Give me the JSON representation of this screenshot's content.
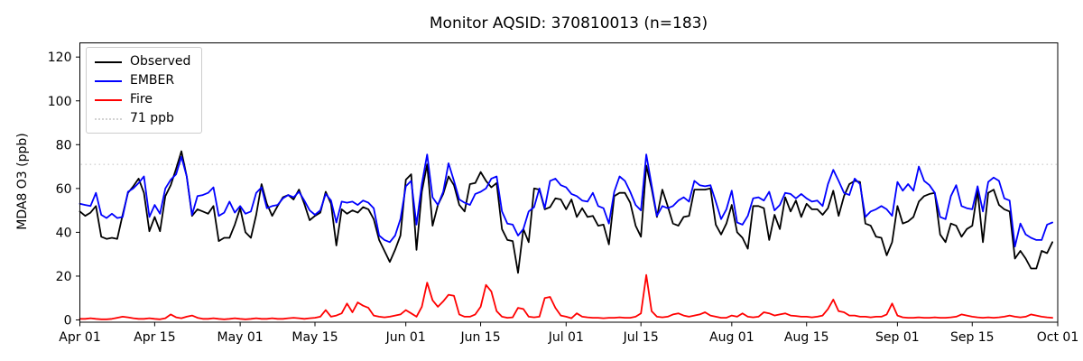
{
  "chart_data": {
    "type": "line",
    "title": "Monitor AQSID: 370810013 (n=183)",
    "xlabel": "",
    "ylabel": "MDA8 O3 (ppb)",
    "n_points": 183,
    "x_unit": "day (Apr 01 = 0)",
    "x_tick_days": [
      0,
      14,
      30,
      44,
      61,
      75,
      91,
      105,
      122,
      136,
      153,
      167,
      183
    ],
    "x_tick_labels": [
      "Apr 01",
      "Apr 15",
      "May 01",
      "May 15",
      "Jun 01",
      "Jun 15",
      "Jul 01",
      "Jul 15",
      "Aug 01",
      "Aug 15",
      "Sep 01",
      "Sep 15",
      "Oct 01"
    ],
    "yticks": [
      0,
      20,
      40,
      60,
      80,
      100,
      120
    ],
    "ylim": [
      -1,
      126.5
    ],
    "grid": false,
    "legend_position": "upper-left",
    "threshold": {
      "value": 71,
      "label": "71 ppb",
      "color": "#d3d3d3",
      "style": "dotted"
    },
    "series": [
      {
        "name": "Observed",
        "color": "#000000",
        "values": [
          49.5,
          47.5,
          49,
          52,
          38,
          37,
          37.5,
          37,
          48,
          58,
          61,
          64.5,
          58,
          40.5,
          47,
          40.5,
          56.5,
          61.5,
          69,
          77,
          65.5,
          47.5,
          50.5,
          49.5,
          48.5,
          52,
          36,
          37.5,
          37.5,
          43.5,
          51,
          40,
          37.5,
          48,
          62,
          53,
          47.5,
          52,
          56,
          57,
          55,
          59.5,
          53,
          45.5,
          47.5,
          49,
          58.5,
          53,
          34,
          50.5,
          48.5,
          50,
          49,
          51.5,
          50.5,
          46,
          36.5,
          31.5,
          26.5,
          32,
          38.5,
          64,
          66.5,
          32,
          58.5,
          71,
          43,
          52.5,
          57.5,
          65.5,
          61.5,
          52.5,
          49.5,
          62,
          62.5,
          67.5,
          63.5,
          60.5,
          62.5,
          41.5,
          36.5,
          36,
          21.5,
          41.5,
          35.5,
          60,
          59.5,
          50.5,
          51.5,
          55.5,
          55,
          50.5,
          55,
          47,
          51,
          47,
          47.5,
          43,
          43.5,
          34.5,
          56.5,
          58,
          58,
          53.5,
          43,
          38,
          70.5,
          60,
          47,
          59.5,
          52,
          44,
          43,
          47,
          47.5,
          59.5,
          59.5,
          59.5,
          60,
          43.5,
          39,
          44,
          52.5,
          40,
          37.5,
          32.5,
          52,
          52,
          51,
          36.5,
          48,
          41.5,
          56,
          49.5,
          54.5,
          47,
          53,
          50.5,
          50.5,
          48,
          51,
          59,
          47.5,
          56.5,
          62,
          63.5,
          63,
          44,
          43,
          38,
          37.5,
          29.5,
          35.5,
          52,
          44,
          45,
          47,
          54,
          56.5,
          57.5,
          58,
          39,
          35.5,
          44,
          43,
          38,
          41.5,
          43,
          59,
          35.5,
          58,
          59.5,
          52.5,
          50.5,
          49.5,
          28,
          31.5,
          28,
          23.5,
          23.5,
          31.5,
          30.5,
          35.5
        ]
      },
      {
        "name": "EMBER",
        "color": "#0000ff",
        "values": [
          53,
          52.5,
          52,
          58,
          48,
          46.5,
          48.5,
          46.5,
          47,
          58.5,
          60,
          62.5,
          65.5,
          47,
          52.5,
          48.5,
          60,
          64,
          66.5,
          74.5,
          65.5,
          48,
          56.5,
          57,
          58,
          60.5,
          47.5,
          49,
          54,
          49,
          52,
          48.5,
          49.5,
          58,
          60.5,
          51,
          52,
          52.5,
          55.5,
          57,
          56,
          58.5,
          54.5,
          50,
          48,
          50,
          57.5,
          54.5,
          44.5,
          54,
          53.5,
          54,
          52.5,
          54.5,
          53.5,
          51,
          38.5,
          36.5,
          35.5,
          38.5,
          46,
          61,
          63.5,
          43.5,
          62,
          75.5,
          56,
          52.5,
          58.5,
          71.5,
          63.5,
          55,
          53.5,
          52.5,
          57.5,
          58.5,
          60,
          64.5,
          65.5,
          49.5,
          44,
          43.5,
          38.5,
          41.5,
          49.5,
          51.5,
          60,
          51,
          63.5,
          64.5,
          61.5,
          60.5,
          57.5,
          56.5,
          54.5,
          54,
          58,
          52,
          51,
          44,
          58.5,
          65.5,
          63.5,
          58.5,
          52.5,
          50,
          75.5,
          61.5,
          47.5,
          52,
          51,
          52,
          54.5,
          56,
          54,
          63.5,
          61.5,
          61,
          61.5,
          54,
          46,
          50.5,
          59,
          44.5,
          43.5,
          47.5,
          55.5,
          56,
          54.5,
          58.5,
          50,
          52.5,
          58,
          57.5,
          55.5,
          57.5,
          55.5,
          54,
          54.5,
          52,
          62,
          68.5,
          63.5,
          58,
          57,
          64.5,
          62,
          47,
          49.5,
          50.5,
          52,
          50.5,
          47.5,
          63,
          59,
          62,
          59,
          70,
          63.5,
          61.5,
          58,
          47,
          46,
          56.5,
          61.5,
          52,
          51,
          50.5,
          61,
          49.5,
          63,
          65,
          63.5,
          55.5,
          54.5,
          33.5,
          44,
          39,
          37.5,
          36.5,
          36.5,
          43.5,
          44.5
        ]
      },
      {
        "name": "Fire",
        "color": "#ff0000",
        "values": [
          0.5,
          0.5,
          0.8,
          0.5,
          0.3,
          0.3,
          0.5,
          1,
          1.5,
          1.2,
          0.8,
          0.5,
          0.5,
          0.8,
          0.5,
          0.3,
          0.8,
          2.5,
          1.2,
          0.8,
          1.5,
          2,
          1,
          0.5,
          0.5,
          0.8,
          0.5,
          0.3,
          0.5,
          0.8,
          0.5,
          0.3,
          0.5,
          0.8,
          0.5,
          0.5,
          0.8,
          0.5,
          0.5,
          0.8,
          1,
          0.8,
          0.5,
          0.8,
          1,
          1.5,
          4.5,
          1.5,
          2,
          3,
          7.5,
          3.5,
          8,
          6.5,
          5.5,
          2,
          1.5,
          1.2,
          1.5,
          2,
          2.5,
          4.5,
          3,
          1.5,
          6,
          17,
          9,
          6,
          8.5,
          11.5,
          11,
          2.5,
          1.5,
          1.5,
          2.5,
          6,
          16,
          13,
          4,
          1.5,
          1,
          1.2,
          5.5,
          5,
          1.5,
          1.2,
          1.5,
          10,
          10.5,
          5.5,
          2,
          1.5,
          0.8,
          3,
          1.5,
          1.2,
          1,
          1,
          0.8,
          1,
          1,
          1.2,
          1,
          1,
          1.5,
          3,
          20.5,
          4,
          1.5,
          1.2,
          1.5,
          2.5,
          3,
          2,
          1.5,
          2,
          2.5,
          3.5,
          2,
          1.5,
          1,
          1,
          2,
          1.5,
          3,
          1.5,
          1.2,
          1.5,
          3.5,
          3,
          2,
          2.5,
          3,
          2,
          1.8,
          1.5,
          1.5,
          1.2,
          1.5,
          2,
          5,
          9.3,
          4,
          3.5,
          2,
          2,
          1.5,
          1.5,
          1.2,
          1.5,
          1.5,
          2.5,
          7.5,
          2,
          1.2,
          1,
          1,
          1.2,
          1,
          1,
          1.2,
          1,
          1,
          1.2,
          1.5,
          2.5,
          2,
          1.5,
          1.2,
          1,
          1.2,
          1,
          1.2,
          1.5,
          2,
          1.5,
          1.2,
          1.5,
          2.5,
          2,
          1.5,
          1.2,
          1
        ]
      }
    ]
  }
}
